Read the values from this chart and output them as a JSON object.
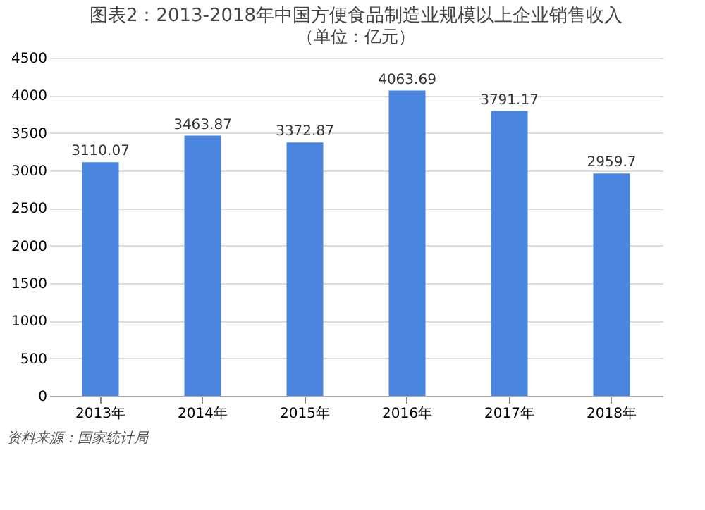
{
  "chart_data": {
    "type": "bar",
    "title": "图表2：2013-2018年中国方便食品制造业规模以上企业销售收入",
    "subtitle": "（单位：亿元）",
    "categories": [
      "2013年",
      "2014年",
      "2015年",
      "2016年",
      "2017年",
      "2018年"
    ],
    "values": [
      3110.07,
      3463.87,
      3372.87,
      4063.69,
      3791.17,
      2959.7
    ],
    "color": "#4a86e0",
    "ylim": [
      0,
      4500
    ],
    "yticks": [
      0,
      500,
      1000,
      1500,
      2000,
      2500,
      3000,
      3500,
      4000,
      4500
    ],
    "grid": "y",
    "data_labels": true,
    "annotations": [
      "资料来源：国家统计局"
    ]
  }
}
